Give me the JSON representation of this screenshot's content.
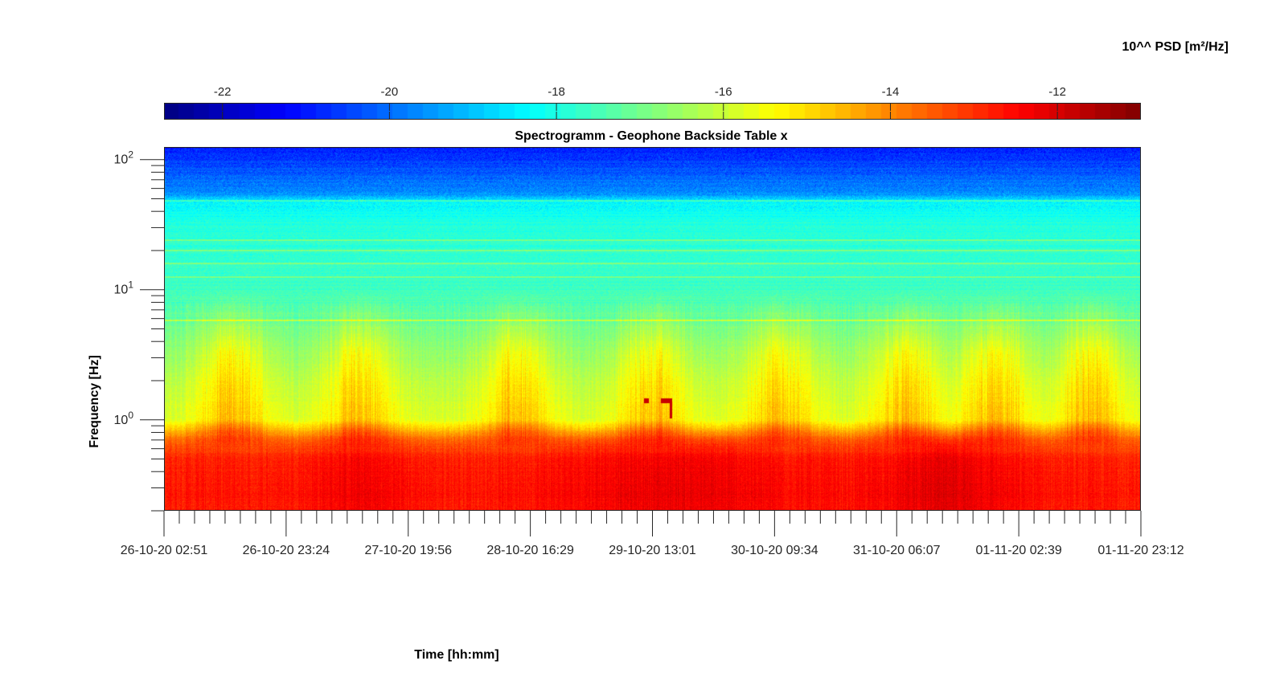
{
  "chart_data": {
    "type": "heatmap",
    "title": "Spectrogramm - Geophone Backside Table x",
    "xlabel": "Time [hh:mm]",
    "ylabel": "Frequency [Hz]",
    "y_scale": "log",
    "ylim": [
      0.2,
      125
    ],
    "y_ticks": [
      {
        "value": 1,
        "base": "10",
        "exp": "0"
      },
      {
        "value": 10,
        "base": "10",
        "exp": "1"
      },
      {
        "value": 100,
        "base": "10",
        "exp": "2"
      }
    ],
    "x_ticks": [
      "26-10-20 02:51",
      "26-10-20 23:24",
      "27-10-20 19:56",
      "28-10-20 16:29",
      "29-10-20 13:01",
      "30-10-20 09:34",
      "31-10-20 06:07",
      "01-11-20 02:39",
      "01-11-20 23:12"
    ],
    "colorbar": {
      "label": "10^^ PSD [m²/Hz]",
      "colormap": "jet",
      "range": [
        -22.7,
        -11.0
      ],
      "ticks": [
        "-22",
        "-20",
        "-18",
        "-16",
        "-14",
        "-12"
      ],
      "tick_values": [
        -22,
        -20,
        -18,
        -16,
        -14,
        -12
      ]
    },
    "psd_profile_log10": {
      "frequency_hz": [
        0.2,
        0.3,
        0.5,
        0.7,
        1.0,
        2.0,
        4.0,
        6.0,
        10,
        30,
        48,
        55,
        100,
        125
      ],
      "psd_exponent": [
        -12.6,
        -12.7,
        -12.8,
        -13.6,
        -15.8,
        -16.2,
        -16.8,
        -17.2,
        -17.6,
        -17.9,
        -18.4,
        -19.6,
        -20.6,
        -21.0
      ]
    },
    "spectral_lines_hz": [
      5.8,
      12.5,
      16,
      20,
      24,
      48
    ],
    "daily_bursts_time_fraction": [
      0.07,
      0.2,
      0.36,
      0.5,
      0.63,
      0.76,
      0.85,
      0.95
    ],
    "grid": false
  },
  "colors": {
    "background": "#ffffff",
    "axis": "#262626",
    "text": "#000000"
  }
}
